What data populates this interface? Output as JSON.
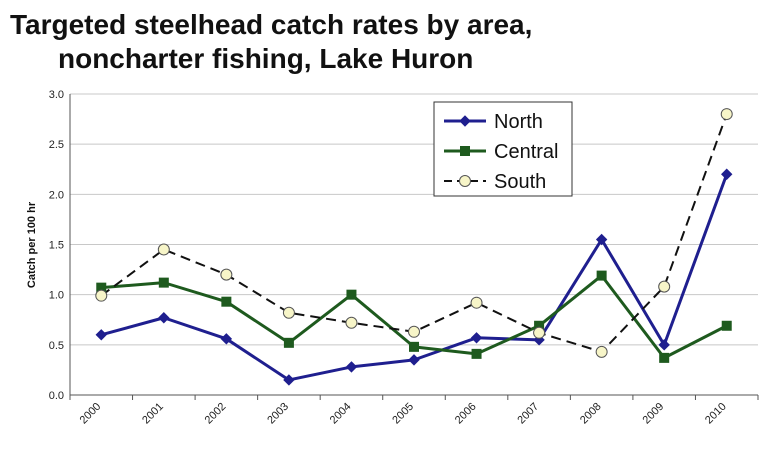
{
  "chart_data": {
    "type": "line",
    "title_lines": [
      "Targeted steelhead catch rates by area,",
      "noncharter fishing, Lake Huron"
    ],
    "xlabel": "",
    "ylabel": "Catch per 100 hr",
    "categories": [
      "2000",
      "2001",
      "2002",
      "2003",
      "2004",
      "2005",
      "2006",
      "2007",
      "2008",
      "2009",
      "2010"
    ],
    "ylim": [
      0,
      3.0
    ],
    "yticks": [
      "0.0",
      "0.5",
      "1.0",
      "1.5",
      "2.0",
      "2.5",
      "3.0"
    ],
    "grid": true,
    "legend_position": "top-right",
    "series": [
      {
        "name": "North",
        "color": "#1f1f8f",
        "marker": "diamond",
        "dash": "solid",
        "values": [
          0.6,
          0.77,
          0.56,
          0.15,
          0.28,
          0.35,
          0.57,
          0.55,
          1.55,
          0.5,
          2.2
        ]
      },
      {
        "name": "Central",
        "color": "#1e5a1e",
        "marker": "square",
        "dash": "solid",
        "values": [
          1.07,
          1.12,
          0.93,
          0.52,
          1.0,
          0.48,
          0.41,
          0.69,
          1.19,
          0.37,
          0.69
        ]
      },
      {
        "name": "South",
        "color": "#111111",
        "marker": "circle",
        "marker_fill": "#f7f5c8",
        "dash": "dashed",
        "values": [
          0.99,
          1.45,
          1.2,
          0.82,
          0.72,
          0.63,
          0.92,
          0.62,
          0.43,
          1.08,
          2.8
        ]
      }
    ]
  }
}
